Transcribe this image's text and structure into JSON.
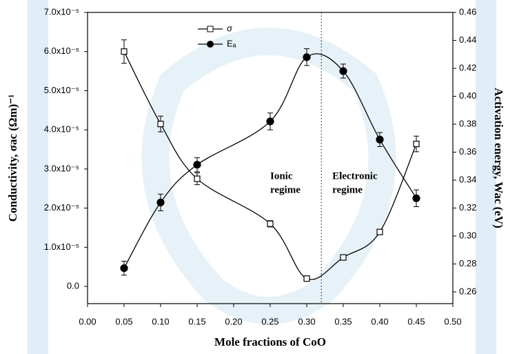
{
  "chart_data": {
    "type": "line",
    "xlabel": "Mole fractions of CoO",
    "ylabel": "Conductivity, σac (Ωm)⁻¹",
    "y2label": "Activation energy, Wac (eV)",
    "x": [
      0.05,
      0.1,
      0.15,
      0.25,
      0.3,
      0.35,
      0.4,
      0.45
    ],
    "series": [
      {
        "name": "σ",
        "color": "#000000",
        "marker": "square",
        "axis": "y",
        "values": [
          6e-05,
          4.15e-05,
          2.75e-05,
          1.6e-05,
          2e-06,
          7.4e-06,
          1.39e-05,
          3.64e-05
        ],
        "errors": [
          3e-06,
          2e-06,
          1.5e-06,
          8e-07,
          5e-07,
          5e-07,
          5e-07,
          2e-06
        ]
      },
      {
        "name": "Eₐ",
        "color": "#000000",
        "marker": "circle",
        "axis": "y2",
        "values": [
          0.277,
          0.324,
          0.351,
          0.382,
          0.428,
          0.418,
          0.369,
          0.327
        ],
        "errors": [
          0.005,
          0.006,
          0.005,
          0.006,
          0.006,
          0.005,
          0.005,
          0.006
        ]
      }
    ],
    "xlim": [
      0,
      0.5
    ],
    "xticks": [
      {
        "value": 0,
        "label": "0.00"
      },
      0.05,
      {
        "value": 0.1,
        "label": "0.10"
      },
      0.15,
      {
        "value": 0.2,
        "label": "0.20"
      },
      0.25,
      {
        "value": 0.3,
        "label": "0.30"
      },
      0.35,
      {
        "value": 0.4,
        "label": "0.40"
      },
      0.45,
      {
        "value": 0.5,
        "label": "0.50"
      }
    ],
    "ylim": [
      -4.4e-06,
      7e-05
    ],
    "yticks": [
      {
        "value": 0,
        "label": "0.0"
      },
      {
        "value": 1e-05,
        "label": "1.0x10⁻⁵"
      },
      {
        "value": 2e-05,
        "label": "2.0x10⁻⁵"
      },
      {
        "value": 3e-05,
        "label": "3.0x10⁻⁵"
      },
      {
        "value": 4e-05,
        "label": "4.0x10⁻⁵"
      },
      {
        "value": 5e-05,
        "label": "5.0x10⁻⁵"
      },
      {
        "value": 6e-05,
        "label": "6.0x10⁻⁵"
      },
      {
        "value": 7e-05,
        "label": "7.0x10⁻⁵"
      }
    ],
    "y2lim": [
      0.2516,
      0.46
    ],
    "y2ticks": [
      0.26,
      0.28,
      {
        "value": 0.3,
        "label": "0.30"
      },
      0.32,
      0.34,
      0.36,
      0.38,
      {
        "value": 0.4,
        "label": "0.40"
      },
      0.42,
      0.44,
      0.46
    ],
    "vline": 0.32,
    "annotations": [
      {
        "x": 0.25,
        "y": 2.8e-05,
        "lines": [
          "Ionic",
          "regime"
        ]
      },
      {
        "x": 0.335,
        "y": 2.8e-05,
        "lines": [
          "Electronic",
          "regime"
        ]
      }
    ]
  }
}
